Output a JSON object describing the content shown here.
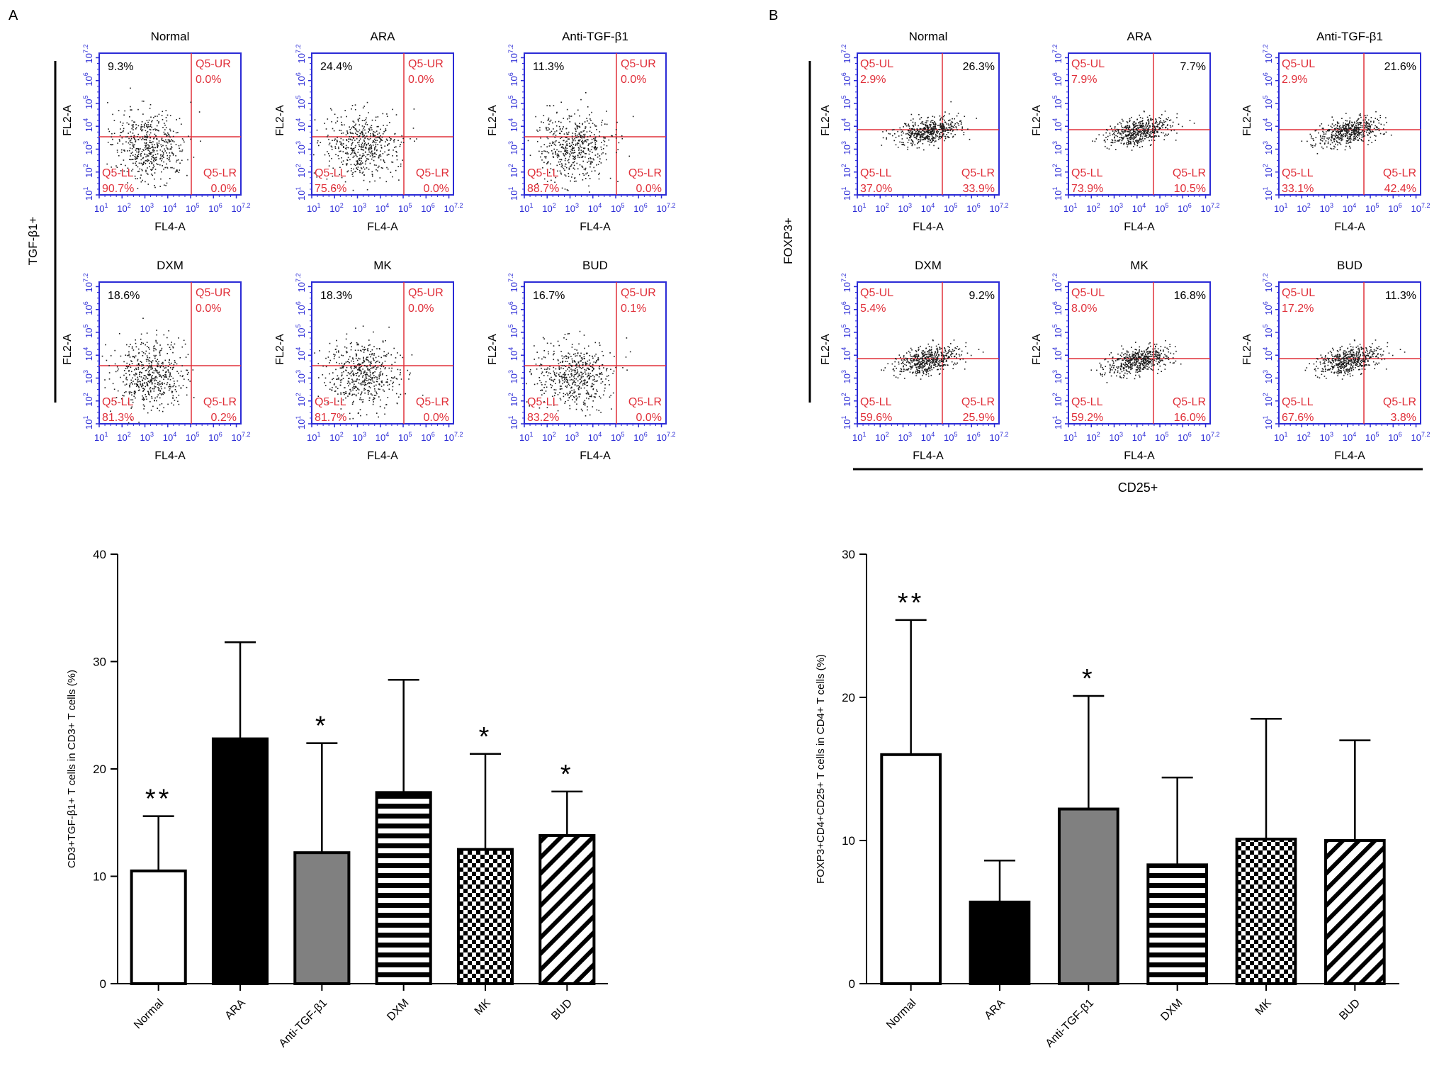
{
  "panel_labels": [
    "A",
    "B"
  ],
  "flow": {
    "x_axis_label": "FL4-A",
    "y_axis_label": "FL2-A",
    "tick_labels": [
      "10",
      "10",
      "10",
      "10",
      "10",
      "10",
      "10"
    ],
    "tick_exponents": [
      "1",
      "2",
      "3",
      "4",
      "5",
      "6",
      "7.2"
    ],
    "panel_a": {
      "row_label": "TGF-β1+",
      "plots": [
        {
          "title": "Normal",
          "ul": "9.3%",
          "ur": "Q5-UR",
          "ur_value": "0.0%",
          "ll": "Q5-LL",
          "ll_value": "90.7%",
          "lr": "Q5-LR",
          "lr_value": "0.0%"
        },
        {
          "title": "ARA",
          "ul": "24.4%",
          "ur": "Q5-UR",
          "ur_value": "0.0%",
          "ll": "Q5-LL",
          "ll_value": "75.6%",
          "lr": "Q5-LR",
          "lr_value": "0.0%"
        },
        {
          "title": "Anti-TGF-β1",
          "ul": "11.3%",
          "ur": "Q5-UR",
          "ur_value": "0.0%",
          "ll": "Q5-LL",
          "ll_value": "88.7%",
          "lr": "Q5-LR",
          "lr_value": "0.0%"
        },
        {
          "title": "DXM",
          "ul": "18.6%",
          "ur": "Q5-UR",
          "ur_value": "0.0%",
          "ll": "Q5-LL",
          "ll_value": "81.3%",
          "lr": "Q5-LR",
          "lr_value": "0.2%"
        },
        {
          "title": "MK",
          "ul": "18.3%",
          "ur": "Q5-UR",
          "ur_value": "0.0%",
          "ll": "Q5-LL",
          "ll_value": "81.7%",
          "lr": "Q5-LR",
          "lr_value": "0.0%"
        },
        {
          "title": "BUD",
          "ul": "16.7%",
          "ur": "Q5-UR",
          "ur_value": "0.1%",
          "ll": "Q5-LL",
          "ll_value": "83.2%",
          "lr": "Q5-LR",
          "lr_value": "0.0%"
        }
      ]
    },
    "panel_b": {
      "row_label": "FOXP3+",
      "bottom_label": "CD25+",
      "plots": [
        {
          "title": "Normal",
          "ul": "Q5-UL",
          "ul_value": "2.9%",
          "ur_value": "26.3%",
          "ll": "Q5-LL",
          "ll_value": "37.0%",
          "lr": "Q5-LR",
          "lr_value": "33.9%"
        },
        {
          "title": "ARA",
          "ul": "Q5-UL",
          "ul_value": "7.9%",
          "ur_value": "7.7%",
          "ll": "Q5-LL",
          "ll_value": "73.9%",
          "lr": "Q5-LR",
          "lr_value": "10.5%"
        },
        {
          "title": "Anti-TGF-β1",
          "ul": "Q5-UL",
          "ul_value": "2.9%",
          "ur_value": "21.6%",
          "ll": "Q5-LL",
          "ll_value": "33.1%",
          "lr": "Q5-LR",
          "lr_value": "42.4%"
        },
        {
          "title": "DXM",
          "ul": "Q5-UL",
          "ul_value": "5.4%",
          "ur_value": "9.2%",
          "ll": "Q5-LL",
          "ll_value": "59.6%",
          "lr": "Q5-LR",
          "lr_value": "25.9%"
        },
        {
          "title": "MK",
          "ul": "Q5-UL",
          "ul_value": "8.0%",
          "ur_value": "16.8%",
          "ll": "Q5-LL",
          "ll_value": "59.2%",
          "lr": "Q5-LR",
          "lr_value": "16.0%"
        },
        {
          "title": "BUD",
          "ul": "Q5-UL",
          "ul_value": "17.2%",
          "ur_value": "11.3%",
          "ll": "Q5-LL",
          "ll_value": "67.6%",
          "lr": "Q5-LR",
          "lr_value": "3.8%"
        }
      ]
    }
  },
  "colors": {
    "flow_axis": "#2b2bd6",
    "gate_line": "#e0303a",
    "gate_text": "#e0303a",
    "dots": "#1a1a1a",
    "bar_outline": "#000000",
    "bar_gray": "#808080"
  },
  "chart_data": [
    {
      "type": "bar",
      "categories": [
        "Normal",
        "ARA",
        "Anti-TGF-β1",
        "DXM",
        "MK",
        "BUD"
      ],
      "values": [
        10.5,
        22.8,
        12.2,
        17.8,
        12.5,
        13.8
      ],
      "error_upper": [
        15.6,
        31.8,
        22.4,
        28.3,
        21.4,
        17.9
      ],
      "significance": [
        "**",
        "",
        "*",
        "",
        "*",
        "*"
      ],
      "fills": [
        "white",
        "black",
        "gray",
        "horizontal-stripes",
        "checker",
        "diagonal-stripes"
      ],
      "ylabel": "CD3+TGF-β1+ T cells in CD3+ T cells (%)",
      "xlabel": "",
      "ylim": [
        0,
        40
      ],
      "yticks": [
        0,
        10,
        20,
        30,
        40
      ],
      "grid": false
    },
    {
      "type": "bar",
      "categories": [
        "Normal",
        "ARA",
        "Anti-TGF-β1",
        "DXM",
        "MK",
        "BUD"
      ],
      "values": [
        16.0,
        5.7,
        12.2,
        8.3,
        10.1,
        10.0
      ],
      "error_upper": [
        25.4,
        8.6,
        20.1,
        14.4,
        18.5,
        17.0
      ],
      "significance": [
        "**",
        "",
        "*",
        "",
        "",
        ""
      ],
      "fills": [
        "white",
        "black",
        "gray",
        "horizontal-stripes",
        "checker",
        "diagonal-stripes"
      ],
      "ylabel": "FOXP3+CD4+CD25+ T cells in CD4+ T cells (%)",
      "xlabel": "",
      "ylim": [
        0,
        30
      ],
      "yticks": [
        0,
        10,
        20,
        30
      ],
      "grid": false
    }
  ]
}
